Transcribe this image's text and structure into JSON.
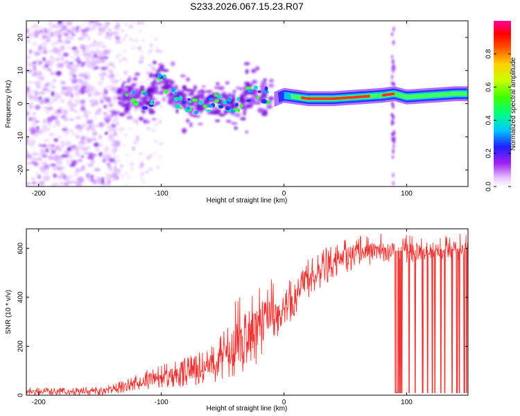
{
  "figure": {
    "title": "S233.2026.067.15.23.R07",
    "colors": {
      "axis": "#000000",
      "trace": "#ee3333",
      "background": "#ffffff"
    }
  },
  "chart_data": [
    {
      "type": "heatmap",
      "title": "S233.2026.067.15.23.R07",
      "xlabel": "Height of straight line (km)",
      "ylabel": "Frequency (Hz)",
      "xlim": [
        -210,
        150
      ],
      "ylim": [
        -25,
        25
      ],
      "x_ticks": [
        -200,
        -100,
        0,
        100
      ],
      "y_ticks": [
        -20,
        -10,
        0,
        10,
        20
      ],
      "x_tick_labels": [
        "-200",
        "-100",
        "0",
        "100"
      ],
      "y_tick_labels": [
        "-20",
        "-10",
        "0",
        "10",
        "20"
      ],
      "colorbar": {
        "label": "Normalized spectral amplitude",
        "range": [
          0.0,
          1.0
        ],
        "ticks": [
          0.0,
          0.2,
          0.4,
          0.6,
          0.8
        ],
        "tick_labels": [
          "0.0",
          "0.2",
          "0.4",
          "0.6",
          "0.8"
        ],
        "colormap": "rainbow"
      },
      "ridge_center_hz": [
        [
          -130,
          3.5
        ],
        [
          -120,
          2.0
        ],
        [
          -110,
          0.5
        ],
        [
          -100,
          7.5
        ],
        [
          -90,
          2.5
        ],
        [
          -80,
          0.0
        ],
        [
          -70,
          -1.0
        ],
        [
          -60,
          0.5
        ],
        [
          -50,
          1.5
        ],
        [
          -40,
          -1.0
        ],
        [
          -30,
          2.0
        ],
        [
          -20,
          3.5
        ],
        [
          -10,
          1.0
        ],
        [
          0,
          2.5
        ],
        [
          10,
          2.0
        ],
        [
          20,
          1.5
        ],
        [
          40,
          1.5
        ],
        [
          60,
          2.0
        ],
        [
          80,
          2.5
        ],
        [
          90,
          3.0
        ],
        [
          100,
          2.0
        ],
        [
          120,
          2.5
        ],
        [
          140,
          3.0
        ],
        [
          150,
          3.0
        ]
      ],
      "regions": [
        {
          "name": "diffuse-noise",
          "x_range": [
            -210,
            -135
          ],
          "amplitude": "low"
        },
        {
          "name": "broken-signal",
          "x_range": [
            -135,
            -10
          ],
          "amplitude": "medium"
        },
        {
          "name": "tone",
          "x_range": [
            0,
            150
          ],
          "amplitude": "high"
        },
        {
          "name": "vertical-streak",
          "x_range": [
            88,
            90
          ],
          "amplitude": "medium"
        }
      ]
    },
    {
      "type": "line",
      "xlabel": "Height of straight line (km)",
      "ylabel": "SNR (10 * v/v)",
      "xlim": [
        -210,
        150
      ],
      "ylim": [
        0,
        680
      ],
      "x_ticks": [
        -200,
        -100,
        0,
        100
      ],
      "y_ticks": [
        0,
        200,
        400,
        600
      ],
      "x_tick_labels": [
        "-200",
        "-100",
        "0",
        "100"
      ],
      "y_tick_labels": [
        "0",
        "200",
        "400",
        "600"
      ],
      "series": [
        {
          "name": "SNR",
          "color": "#ee3333",
          "envelope": [
            {
              "x": -210,
              "low": 0,
              "high": 30,
              "mid": 15
            },
            {
              "x": -180,
              "low": 0,
              "high": 30,
              "mid": 15
            },
            {
              "x": -150,
              "low": 0,
              "high": 35,
              "mid": 17
            },
            {
              "x": -130,
              "low": 10,
              "high": 60,
              "mid": 35
            },
            {
              "x": -110,
              "low": 20,
              "high": 110,
              "mid": 65
            },
            {
              "x": -90,
              "low": 30,
              "high": 140,
              "mid": 80
            },
            {
              "x": -70,
              "low": 40,
              "high": 170,
              "mid": 100
            },
            {
              "x": -50,
              "low": 60,
              "high": 250,
              "mid": 150
            },
            {
              "x": -40,
              "low": 80,
              "high": 380,
              "mid": 200
            },
            {
              "x": -30,
              "low": 100,
              "high": 450,
              "mid": 250
            },
            {
              "x": -20,
              "low": 130,
              "high": 450,
              "mid": 290
            },
            {
              "x": -10,
              "low": 200,
              "high": 480,
              "mid": 340
            },
            {
              "x": 0,
              "low": 270,
              "high": 460,
              "mid": 380
            },
            {
              "x": 10,
              "low": 330,
              "high": 480,
              "mid": 420
            },
            {
              "x": 20,
              "low": 400,
              "high": 560,
              "mid": 480
            },
            {
              "x": 40,
              "low": 480,
              "high": 620,
              "mid": 550
            },
            {
              "x": 60,
              "low": 520,
              "high": 650,
              "mid": 585
            },
            {
              "x": 80,
              "low": 540,
              "high": 660,
              "mid": 590
            },
            {
              "x": 100,
              "low": 540,
              "high": 660,
              "mid": 590
            },
            {
              "x": 120,
              "low": 550,
              "high": 660,
              "mid": 595
            },
            {
              "x": 150,
              "low": 550,
              "high": 660,
              "mid": 600
            }
          ],
          "dropouts_x": [
            91,
            92,
            93,
            94,
            95,
            96,
            102,
            107,
            113,
            117,
            121,
            123,
            128,
            131,
            137,
            141,
            143,
            147,
            149
          ],
          "dropout_value": 10
        }
      ]
    }
  ]
}
